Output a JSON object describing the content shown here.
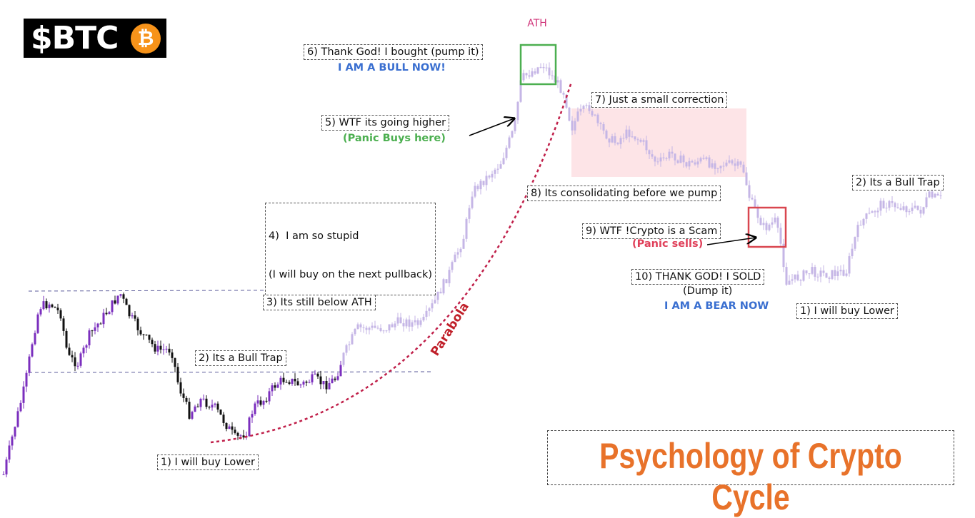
{
  "logo": {
    "text": "$BTC",
    "icon": "₿"
  },
  "ath_label": "ATH",
  "parabola_label": "Parabola",
  "title": "Psychology of Crypto Cycle",
  "steps": [
    {
      "label": "1) I will buy Lower"
    },
    {
      "label": "2) Its a Bull Trap"
    },
    {
      "label": "3) Its still below ATH"
    },
    {
      "lines": [
        "4)  I am so stupid",
        "(I will buy on the next pullback)"
      ]
    },
    {
      "label": "5) WTF its going higher",
      "note": "(Panic Buys here)"
    },
    {
      "label": "6) Thank God! I bought (pump it)",
      "note": "I AM A BULL NOW!"
    },
    {
      "label": "7) Just a small correction"
    },
    {
      "label": "8) Its consolidating before we pump"
    },
    {
      "label": "9) WTF !Crypto is a Scam",
      "note": "(Panic sells)"
    },
    {
      "label": "10) THANK GOD! I SOLD",
      "sub": "(Dump it)",
      "note": "I AM A BEAR NOW"
    },
    {
      "label": "1) I will buy Lower"
    },
    {
      "label": "2) Its a Bull Trap"
    }
  ]
}
